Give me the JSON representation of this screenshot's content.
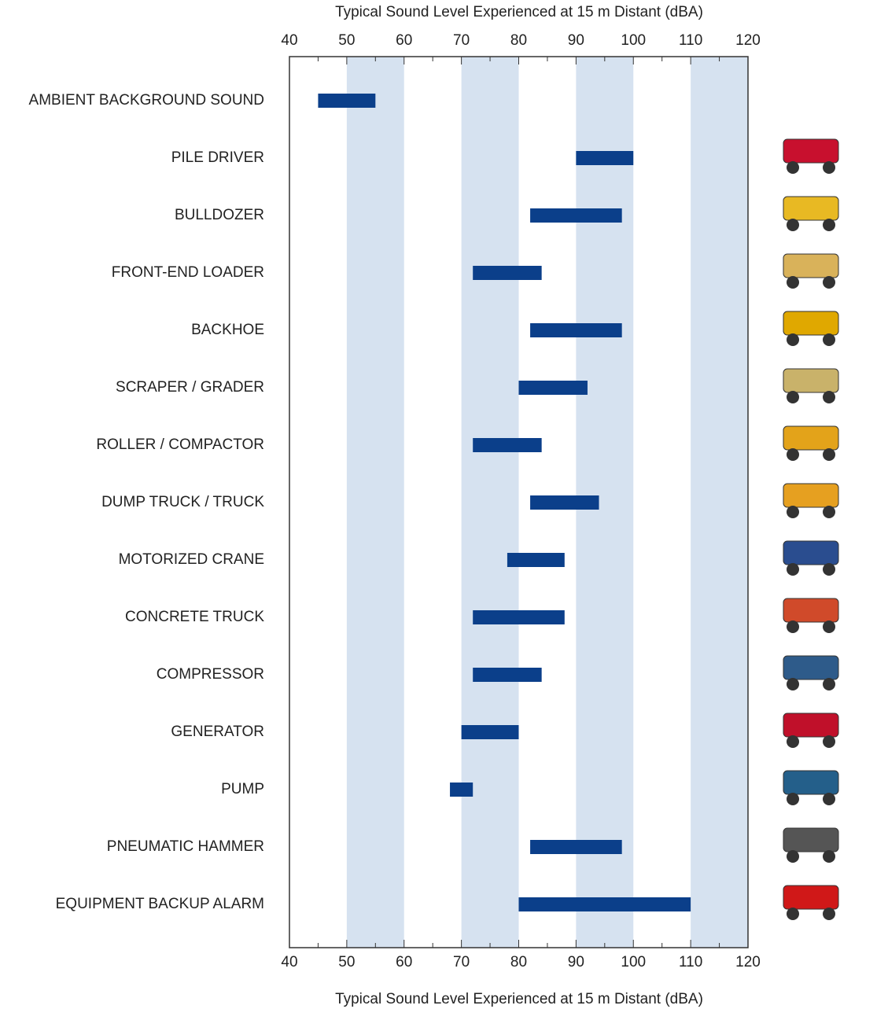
{
  "chart_data": {
    "type": "range-bar",
    "xlabel": "Typical Sound Level Experienced at 15 m Distant (dBA)",
    "categories": [
      "AMBIENT BACKGROUND SOUND",
      "PILE DRIVER",
      "BULLDOZER",
      "FRONT-END LOADER",
      "BACKHOE",
      "SCRAPER / GRADER",
      "ROLLER / COMPACTOR",
      "DUMP TRUCK / TRUCK",
      "MOTORIZED CRANE",
      "CONCRETE TRUCK",
      "COMPRESSOR",
      "GENERATOR",
      "PUMP",
      "PNEUMATIC HAMMER",
      "EQUIPMENT BACKUP ALARM"
    ],
    "ranges": [
      [
        45,
        55
      ],
      [
        90,
        100
      ],
      [
        82,
        98
      ],
      [
        72,
        84
      ],
      [
        82,
        98
      ],
      [
        80,
        92
      ],
      [
        72,
        84
      ],
      [
        82,
        94
      ],
      [
        78,
        88
      ],
      [
        72,
        88
      ],
      [
        72,
        84
      ],
      [
        70,
        80
      ],
      [
        68,
        72
      ],
      [
        82,
        98
      ],
      [
        80,
        110
      ]
    ],
    "color": "#0b3f8a",
    "xlim": [
      40,
      120
    ],
    "xticks": [
      40,
      50,
      60,
      70,
      80,
      90,
      100,
      110,
      120
    ],
    "xminorticks": [
      45,
      55,
      65,
      75,
      85,
      95,
      105,
      115
    ],
    "bands": [
      [
        50,
        60
      ],
      [
        70,
        80
      ],
      [
        90,
        100
      ],
      [
        110,
        120
      ]
    ],
    "band_color": "#d6e2f0"
  }
}
